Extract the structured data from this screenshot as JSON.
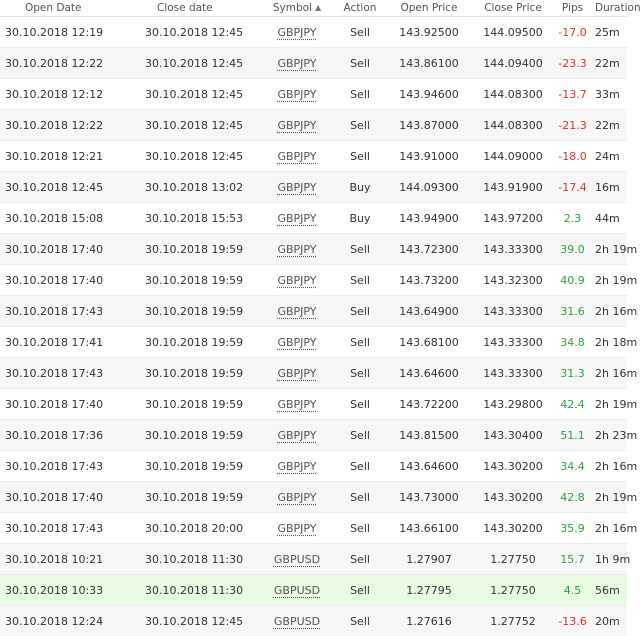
{
  "columns": {
    "open_date": "Open Date",
    "close_date": "Close date",
    "symbol": "Symbol",
    "action": "Action",
    "open_price": "Open Price",
    "close_price": "Close Price",
    "pips": "Pips",
    "duration": "Duration"
  },
  "colors": {
    "negative": "#d63232",
    "positive": "#2ea043",
    "highlight_row": "#e9fbe3"
  },
  "rows": [
    {
      "open": "30.10.2018 12:19",
      "close": "30.10.2018 12:45",
      "symbol": "GBPJPY",
      "action": "Sell",
      "open_price": "143.92500",
      "close_price": "144.09500",
      "pips": "-17.0",
      "duration": "25m"
    },
    {
      "open": "30.10.2018 12:22",
      "close": "30.10.2018 12:45",
      "symbol": "GBPJPY",
      "action": "Sell",
      "open_price": "143.86100",
      "close_price": "144.09400",
      "pips": "-23.3",
      "duration": "22m"
    },
    {
      "open": "30.10.2018 12:12",
      "close": "30.10.2018 12:45",
      "symbol": "GBPJPY",
      "action": "Sell",
      "open_price": "143.94600",
      "close_price": "144.08300",
      "pips": "-13.7",
      "duration": "33m"
    },
    {
      "open": "30.10.2018 12:22",
      "close": "30.10.2018 12:45",
      "symbol": "GBPJPY",
      "action": "Sell",
      "open_price": "143.87000",
      "close_price": "144.08300",
      "pips": "-21.3",
      "duration": "22m"
    },
    {
      "open": "30.10.2018 12:21",
      "close": "30.10.2018 12:45",
      "symbol": "GBPJPY",
      "action": "Sell",
      "open_price": "143.91000",
      "close_price": "144.09000",
      "pips": "-18.0",
      "duration": "24m"
    },
    {
      "open": "30.10.2018 12:45",
      "close": "30.10.2018 13:02",
      "symbol": "GBPJPY",
      "action": "Buy",
      "open_price": "144.09300",
      "close_price": "143.91900",
      "pips": "-17.4",
      "duration": "16m"
    },
    {
      "open": "30.10.2018 15:08",
      "close": "30.10.2018 15:53",
      "symbol": "GBPJPY",
      "action": "Buy",
      "open_price": "143.94900",
      "close_price": "143.97200",
      "pips": "2.3",
      "duration": "44m"
    },
    {
      "open": "30.10.2018 17:40",
      "close": "30.10.2018 19:59",
      "symbol": "GBPJPY",
      "action": "Sell",
      "open_price": "143.72300",
      "close_price": "143.33300",
      "pips": "39.0",
      "duration": "2h 19m"
    },
    {
      "open": "30.10.2018 17:40",
      "close": "30.10.2018 19:59",
      "symbol": "GBPJPY",
      "action": "Sell",
      "open_price": "143.73200",
      "close_price": "143.32300",
      "pips": "40.9",
      "duration": "2h 19m"
    },
    {
      "open": "30.10.2018 17:43",
      "close": "30.10.2018 19:59",
      "symbol": "GBPJPY",
      "action": "Sell",
      "open_price": "143.64900",
      "close_price": "143.33300",
      "pips": "31.6",
      "duration": "2h 16m"
    },
    {
      "open": "30.10.2018 17:41",
      "close": "30.10.2018 19:59",
      "symbol": "GBPJPY",
      "action": "Sell",
      "open_price": "143.68100",
      "close_price": "143.33300",
      "pips": "34.8",
      "duration": "2h 18m"
    },
    {
      "open": "30.10.2018 17:43",
      "close": "30.10.2018 19:59",
      "symbol": "GBPJPY",
      "action": "Sell",
      "open_price": "143.64600",
      "close_price": "143.33300",
      "pips": "31.3",
      "duration": "2h 16m"
    },
    {
      "open": "30.10.2018 17:40",
      "close": "30.10.2018 19:59",
      "symbol": "GBPJPY",
      "action": "Sell",
      "open_price": "143.72200",
      "close_price": "143.29800",
      "pips": "42.4",
      "duration": "2h 19m"
    },
    {
      "open": "30.10.2018 17:36",
      "close": "30.10.2018 19:59",
      "symbol": "GBPJPY",
      "action": "Sell",
      "open_price": "143.81500",
      "close_price": "143.30400",
      "pips": "51.1",
      "duration": "2h 23m"
    },
    {
      "open": "30.10.2018 17:43",
      "close": "30.10.2018 19:59",
      "symbol": "GBPJPY",
      "action": "Sell",
      "open_price": "143.64600",
      "close_price": "143.30200",
      "pips": "34.4",
      "duration": "2h 16m"
    },
    {
      "open": "30.10.2018 17:40",
      "close": "30.10.2018 19:59",
      "symbol": "GBPJPY",
      "action": "Sell",
      "open_price": "143.73000",
      "close_price": "143.30200",
      "pips": "42.8",
      "duration": "2h 19m"
    },
    {
      "open": "30.10.2018 17:43",
      "close": "30.10.2018 20:00",
      "symbol": "GBPJPY",
      "action": "Sell",
      "open_price": "143.66100",
      "close_price": "143.30200",
      "pips": "35.9",
      "duration": "2h 16m"
    },
    {
      "open": "30.10.2018 10:21",
      "close": "30.10.2018 11:30",
      "symbol": "GBPUSD",
      "action": "Sell",
      "open_price": "1.27907",
      "close_price": "1.27750",
      "pips": "15.7",
      "duration": "1h 9m"
    },
    {
      "open": "30.10.2018 10:33",
      "close": "30.10.2018 11:30",
      "symbol": "GBPUSD",
      "action": "Sell",
      "open_price": "1.27795",
      "close_price": "1.27750",
      "pips": "4.5",
      "duration": "56m",
      "highlight": true
    },
    {
      "open": "30.10.2018 12:24",
      "close": "30.10.2018 12:45",
      "symbol": "GBPUSD",
      "action": "Sell",
      "open_price": "1.27616",
      "close_price": "1.27752",
      "pips": "-13.6",
      "duration": "20m"
    }
  ]
}
